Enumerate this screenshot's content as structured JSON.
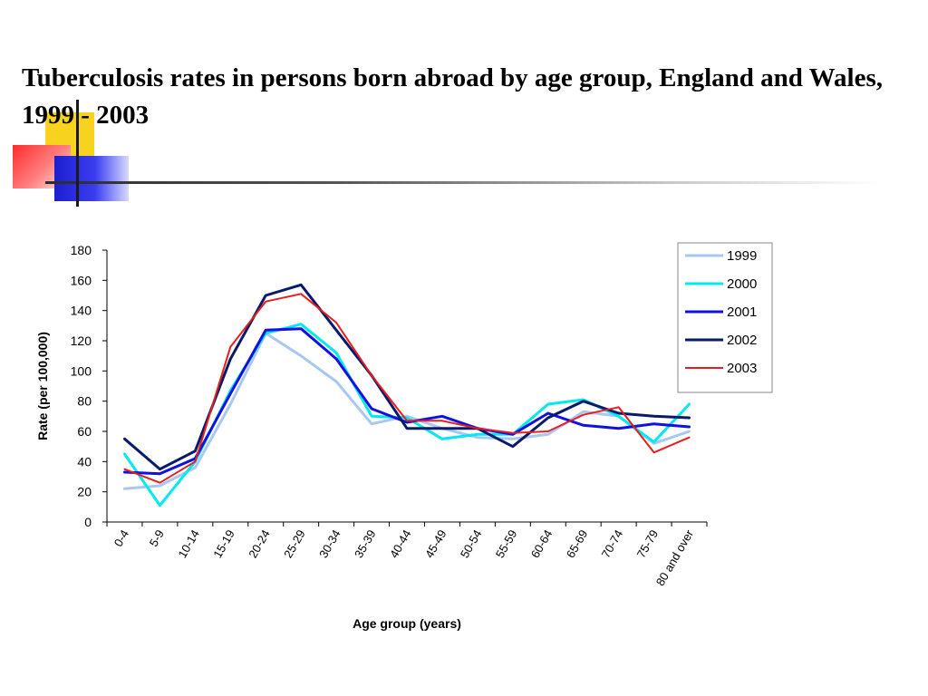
{
  "slide": {
    "title": "Tuberculosis rates in persons born abroad by age group, England and Wales, 1999 - 2003"
  },
  "chart_data": {
    "type": "line",
    "title": "",
    "xlabel": "Age group (years)",
    "ylabel": "Rate (per 100,000)",
    "ylim": [
      0,
      180
    ],
    "yticks": [
      0,
      20,
      40,
      60,
      80,
      100,
      120,
      140,
      160,
      180
    ],
    "grid": false,
    "legend_position": "top-right",
    "categories": [
      "0-4",
      "5-9",
      "10-14",
      "15-19",
      "20-24",
      "25-29",
      "30-34",
      "35-39",
      "40-44",
      "45-49",
      "50-54",
      "55-59",
      "60-64",
      "65-69",
      "70-74",
      "75-79",
      "80 and over"
    ],
    "series": [
      {
        "name": "1999",
        "color": "#a8c8f0",
        "values": [
          22,
          24,
          36,
          78,
          125,
          110,
          93,
          65,
          70,
          62,
          56,
          55,
          58,
          73,
          70,
          52,
          60
        ]
      },
      {
        "name": "2000",
        "color": "#00e8f0",
        "values": [
          45,
          11,
          40,
          87,
          125,
          131,
          112,
          70,
          69,
          55,
          58,
          58,
          78,
          81,
          70,
          53,
          78
        ]
      },
      {
        "name": "2001",
        "color": "#1010e0",
        "values": [
          33,
          32,
          42,
          85,
          127,
          128,
          108,
          75,
          66,
          70,
          62,
          58,
          72,
          64,
          62,
          65,
          63
        ]
      },
      {
        "name": "2002",
        "color": "#0a1a6a",
        "values": [
          55,
          35,
          47,
          108,
          150,
          157,
          127,
          97,
          62,
          62,
          62,
          50,
          69,
          80,
          72,
          70,
          69
        ]
      },
      {
        "name": "2003",
        "color": "#e81e1e",
        "values": [
          35,
          26,
          40,
          116,
          146,
          151,
          132,
          97,
          67,
          67,
          62,
          59,
          60,
          71,
          76,
          46,
          56
        ]
      }
    ]
  }
}
